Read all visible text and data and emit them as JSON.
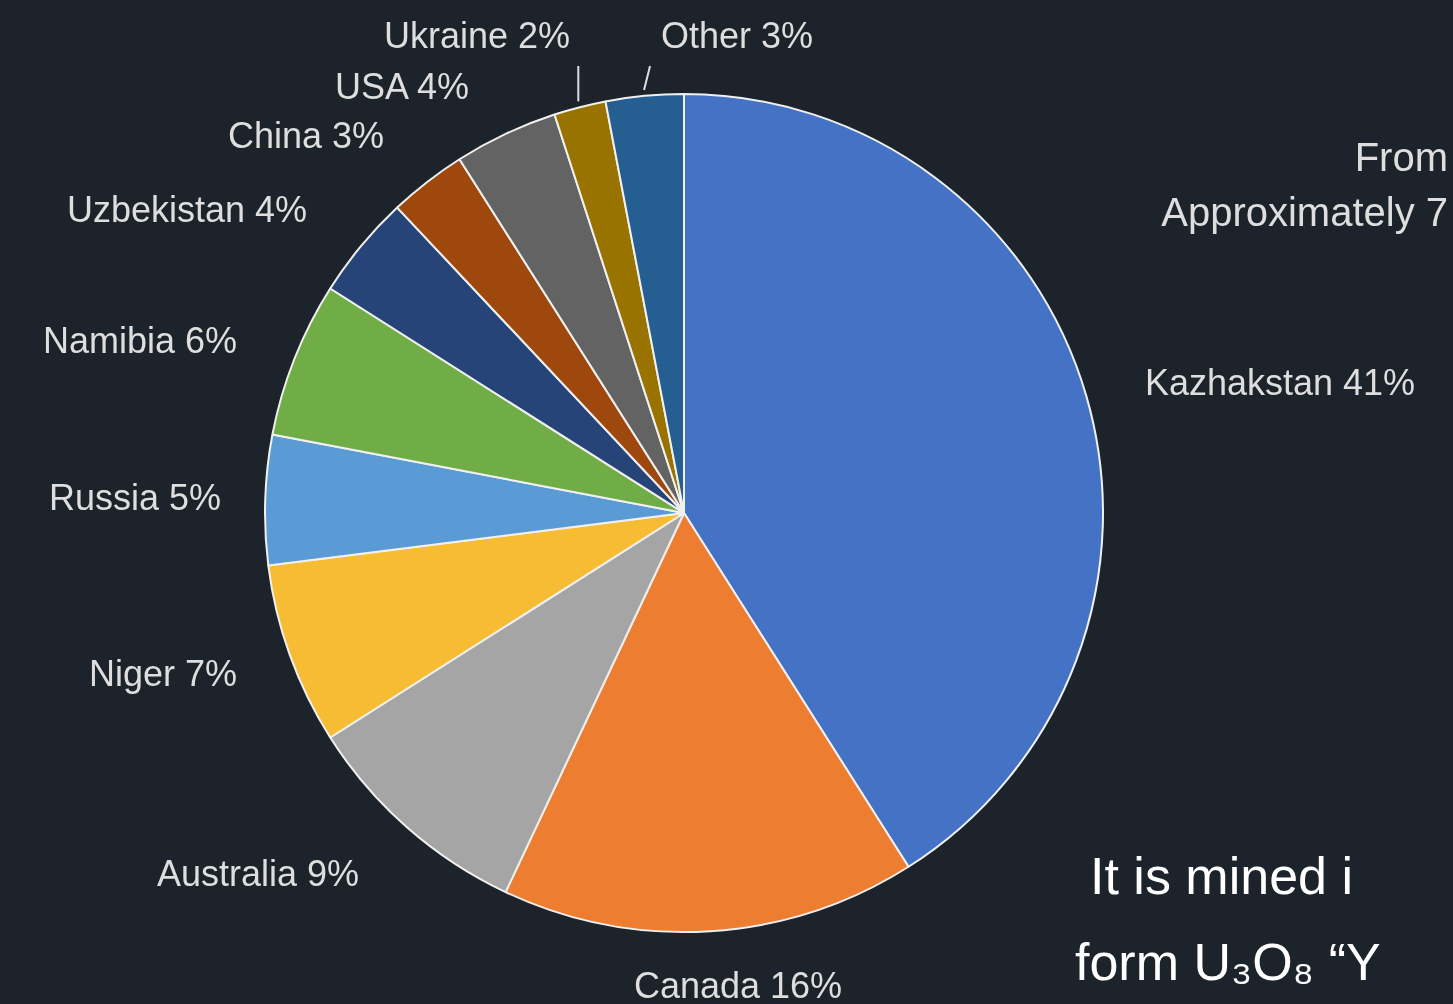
{
  "chart_data": {
    "type": "pie",
    "categories": [
      "Kazhakstan",
      "Canada",
      "Australia",
      "Niger",
      "Russia",
      "Namibia",
      "Uzbekistan",
      "China",
      "USA",
      "Ukraine",
      "Other"
    ],
    "values": [
      41,
      16,
      9,
      7,
      5,
      6,
      4,
      3,
      4,
      2,
      3
    ],
    "colors": [
      "#4472c4",
      "#ed7d31",
      "#a5a5a5",
      "#f6bc33",
      "#5b9bd5",
      "#70ad47",
      "#264478",
      "#9e480e",
      "#636363",
      "#997300",
      "#255e91"
    ],
    "value_labels": [
      "41%",
      "16%",
      "9%",
      "7%",
      "5%",
      "6%",
      "4%",
      "3%",
      "4%",
      "2%",
      "3%"
    ],
    "legend": false,
    "annotations": [
      "From",
      "Approximately 7",
      "It is mined i",
      "form U₃O₈ “Y"
    ]
  }
}
